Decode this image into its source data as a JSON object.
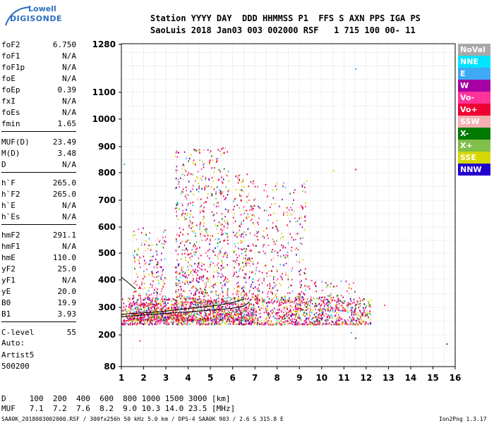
{
  "logo": {
    "line1": "Lowell",
    "line2": "DIGISONDE"
  },
  "header": {
    "line1": "Station YYYY DAY  DDD HHMMSS P1  FFS S AXN PPS IGA PS",
    "line2": "SaoLuis 2018 Jan03 003 002000 RSF   1 715 100 00- 11"
  },
  "params": [
    {
      "label": "foF2",
      "value": "6.750"
    },
    {
      "label": "foF1",
      "value": "N/A"
    },
    {
      "label": "foF1p",
      "value": "N/A"
    },
    {
      "label": "foE",
      "value": "N/A"
    },
    {
      "label": "foEp",
      "value": "0.39"
    },
    {
      "label": "fxI",
      "value": "N/A"
    },
    {
      "label": "foEs",
      "value": "N/A"
    },
    {
      "label": "fmin",
      "value": "1.65"
    },
    {
      "label": "MUF(D)",
      "value": "23.49"
    },
    {
      "label": "M(D)",
      "value": "3.48"
    },
    {
      "label": "D",
      "value": "N/A"
    },
    {
      "label": "h`F",
      "value": "265.0"
    },
    {
      "label": "h`F2",
      "value": "265.0"
    },
    {
      "label": "h`E",
      "value": "N/A"
    },
    {
      "label": "h`Es",
      "value": "N/A"
    },
    {
      "label": "hmF2",
      "value": "291.1"
    },
    {
      "label": "hmF1",
      "value": "N/A"
    },
    {
      "label": "hmE",
      "value": "110.0"
    },
    {
      "label": "yF2",
      "value": "25.0"
    },
    {
      "label": "yF1",
      "value": "N/A"
    },
    {
      "label": "yE",
      "value": "20.0"
    },
    {
      "label": "B0",
      "value": "19.9"
    },
    {
      "label": "B1",
      "value": "3.93"
    },
    {
      "label": "C-level",
      "value": "55"
    }
  ],
  "autoscale": {
    "line1": "Auto:",
    "line2": "Artist5",
    "line3": "500200"
  },
  "legend": [
    {
      "label": "NoVal",
      "color": "#a8a8a8"
    },
    {
      "label": "NNE",
      "color": "#00e5ff"
    },
    {
      "label": "E",
      "color": "#3fa9f5"
    },
    {
      "label": "W",
      "color": "#a400a4"
    },
    {
      "label": "Vo-",
      "color": "#ff3399"
    },
    {
      "label": "Vo+",
      "color": "#ee0033"
    },
    {
      "label": "SSW",
      "color": "#f4b0b0"
    },
    {
      "label": "X-",
      "color": "#007a00"
    },
    {
      "label": "X+",
      "color": "#7fbf4a"
    },
    {
      "label": "SSE",
      "color": "#d6d600"
    },
    {
      "label": "NNW",
      "color": "#2200cc"
    }
  ],
  "footer": {
    "d_row": "D     100  200  400  600  800 1000 1500 3000 [km]",
    "muf_row": "MUF   7.1  7.2  7.6  8.2  9.0 10.3 14.0 23.5 [MHz]",
    "file_info": "SAA0K_2018003002000.RSF / 300fx256h 50 kHz 5.0 km / DPS-4 SAA0K 903 / 2.6 S 315.8 E",
    "version": "Ion2Png 1.3.17"
  },
  "chart_data": {
    "type": "scatter",
    "x_ticks": [
      "1",
      "2",
      "3",
      "4",
      "5",
      "6",
      "7",
      "8",
      "9",
      "10",
      "11",
      "12",
      "13",
      "14",
      "15",
      "16"
    ],
    "y_ticks": [
      "80",
      "200",
      "300",
      "400",
      "500",
      "600",
      "700",
      "800",
      "900",
      "1000",
      "1100",
      "1280"
    ],
    "xlim": [
      1,
      16
    ],
    "y_ticks_values": [
      80,
      200,
      300,
      400,
      500,
      600,
      700,
      800,
      900,
      1000,
      1100,
      1280
    ],
    "grid": true,
    "legend_position": "right",
    "traces": [
      {
        "color": "#000000",
        "x": [
          1.0,
          1.3,
          1.6,
          2.0,
          2.5,
          3.0,
          3.5,
          4.0,
          4.5,
          5.0,
          5.5,
          6.0,
          6.5,
          6.75
        ],
        "y": [
          265,
          268,
          270,
          272,
          275,
          278,
          281,
          284,
          287,
          290,
          293,
          297,
          305,
          320
        ]
      },
      {
        "color": "#000000",
        "x": [
          1.0,
          1.5,
          2.0,
          2.5,
          3.0,
          3.5,
          4.0,
          4.5,
          5.0,
          5.5,
          6.0,
          6.5
        ],
        "y": [
          275,
          278,
          280,
          283,
          287,
          291,
          296,
          300,
          305,
          310,
          318,
          330
        ]
      },
      {
        "color": "#000000",
        "x": [
          1.0,
          1.3,
          1.6
        ],
        "y": [
          410,
          390,
          370
        ]
      }
    ],
    "clusters": [
      {
        "x": [
          1.0,
          12.2
        ],
        "y": [
          240,
          340
        ],
        "n": 1600
      },
      {
        "x": [
          1.3,
          7.0
        ],
        "y": [
          255,
          320
        ],
        "n": 900
      },
      {
        "x": [
          3.4,
          5.8
        ],
        "y": [
          320,
          900
        ],
        "n": 700
      },
      {
        "x": [
          6.0,
          7.2
        ],
        "y": [
          330,
          800
        ],
        "n": 300
      },
      {
        "x": [
          7.3,
          9.3
        ],
        "y": [
          320,
          780
        ],
        "n": 260
      },
      {
        "x": [
          1.5,
          3.0
        ],
        "y": [
          330,
          600
        ],
        "n": 180
      },
      {
        "x": [
          9.0,
          11.5
        ],
        "y": [
          290,
          400
        ],
        "n": 120
      }
    ],
    "isolated_points": [
      {
        "x": 11.5,
        "y": 1190,
        "color": "#3fa9f5"
      },
      {
        "x": 11.5,
        "y": 815,
        "color": "#ee0033"
      },
      {
        "x": 10.5,
        "y": 810,
        "color": "#d6d600"
      },
      {
        "x": 1.8,
        "y": 180,
        "color": "#ff3399"
      },
      {
        "x": 11.3,
        "y": 210,
        "color": "#3fa9f5"
      },
      {
        "x": 11.5,
        "y": 190,
        "color": "#007a00"
      },
      {
        "x": 15.6,
        "y": 168,
        "color": "#a400a4"
      },
      {
        "x": 12.8,
        "y": 310,
        "color": "#ff3399"
      },
      {
        "x": 1.1,
        "y": 835,
        "color": "#3fa9f5"
      }
    ]
  }
}
